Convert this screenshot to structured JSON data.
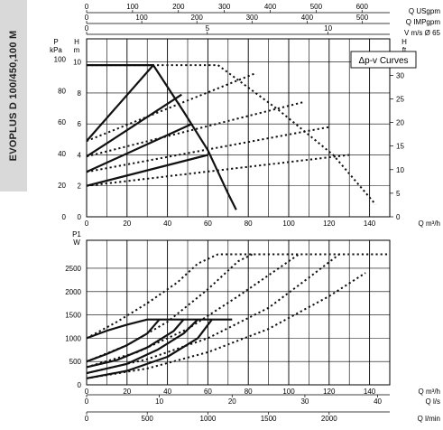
{
  "product_label": "EVOPLUS D 100/450,100 M",
  "top_scales": {
    "usgpm": {
      "label": "Q USgpm",
      "ticks": [
        "0",
        "100",
        "200",
        "300",
        "400",
        "500",
        "600"
      ]
    },
    "impgpm": {
      "label": "Q IMPgpm",
      "ticks": [
        "0",
        "100",
        "200",
        "300",
        "400",
        "500"
      ]
    },
    "velocity": {
      "label": "V m/s Ø 65",
      "ticks": [
        "0",
        "5",
        "10"
      ]
    }
  },
  "bottom_scales": {
    "ls": {
      "label": "Q l/s",
      "ticks": [
        "0",
        "10",
        "20",
        "30",
        "40"
      ]
    },
    "lmin": {
      "label": "Q l/min",
      "ticks": [
        "0",
        "500",
        "1000",
        "1500",
        "2000"
      ]
    }
  },
  "chart_data": [
    {
      "type": "line",
      "legend_box": "Δp-v Curves",
      "y_left_outer": {
        "label": "P",
        "unit": "kPa",
        "ticks": [
          "0",
          "20",
          "40",
          "60",
          "80",
          "100"
        ]
      },
      "y_left_inner": {
        "label": "H",
        "unit": "m",
        "ticks": [
          "0",
          "2",
          "4",
          "6",
          "8",
          "10"
        ]
      },
      "y_right": {
        "label": "H",
        "unit": "ft",
        "ticks": [
          "0",
          "5",
          "10",
          "15",
          "20",
          "25",
          "30"
        ]
      },
      "x": {
        "label": "Q m³/h",
        "ticks": [
          "0",
          "20",
          "40",
          "60",
          "80",
          "100",
          "120",
          "140"
        ]
      },
      "xlim": [
        0,
        150
      ],
      "ylim": [
        0,
        11.5
      ],
      "grid": true,
      "series": [
        {
          "style": "solid",
          "points": [
            [
              0,
              9.8
            ],
            [
              33,
              9.8
            ],
            [
              48,
              6.8
            ],
            [
              60,
              4.3
            ],
            [
              70,
              1.5
            ],
            [
              74,
              0.45
            ]
          ]
        },
        {
          "style": "solid",
          "points": [
            [
              0,
              4.9
            ],
            [
              33,
              9.8
            ]
          ]
        },
        {
          "style": "solid",
          "points": [
            [
              0,
              3.9
            ],
            [
              47,
              7.9
            ]
          ]
        },
        {
          "style": "solid",
          "points": [
            [
              0,
              2.9
            ],
            [
              52,
              6.0
            ]
          ]
        },
        {
          "style": "solid",
          "points": [
            [
              0,
              2.0
            ],
            [
              60,
              4.0
            ]
          ]
        },
        {
          "style": "dotted",
          "points": [
            [
              0,
              9.8
            ],
            [
              33,
              9.8
            ],
            [
              65,
              9.8
            ],
            [
              95,
              6.9
            ],
            [
              122,
              4.0
            ],
            [
              143,
              0.8
            ]
          ]
        },
        {
          "style": "dotted",
          "points": [
            [
              0,
              4.9
            ],
            [
              84,
              9.3
            ]
          ]
        },
        {
          "style": "dotted",
          "points": [
            [
              0,
              3.9
            ],
            [
              107,
              7.4
            ]
          ]
        },
        {
          "style": "dotted",
          "points": [
            [
              0,
              2.9
            ],
            [
              120,
              5.8
            ]
          ]
        },
        {
          "style": "dotted",
          "points": [
            [
              0,
              2.0
            ],
            [
              130,
              4.0
            ]
          ]
        }
      ]
    },
    {
      "type": "line",
      "y": {
        "label": "P1",
        "unit": "W",
        "ticks": [
          "0",
          "500",
          "1000",
          "1500",
          "2000",
          "2500"
        ]
      },
      "x": {
        "label": "Q m³/h",
        "ticks": [
          "0",
          "20",
          "40",
          "60",
          "80",
          "100",
          "120",
          "140"
        ]
      },
      "xlim": [
        0,
        150
      ],
      "ylim": [
        0,
        3100
      ],
      "grid": true,
      "series": [
        {
          "style": "solid",
          "points": [
            [
              0,
              1000
            ],
            [
              10,
              1160
            ],
            [
              20,
              1290
            ],
            [
              30,
              1400
            ],
            [
              72,
              1400
            ]
          ]
        },
        {
          "style": "solid",
          "points": [
            [
              0,
              500
            ],
            [
              10,
              660
            ],
            [
              20,
              850
            ],
            [
              30,
              1100
            ],
            [
              36,
              1400
            ]
          ]
        },
        {
          "style": "solid",
          "points": [
            [
              0,
              380
            ],
            [
              15,
              530
            ],
            [
              30,
              800
            ],
            [
              43,
              1150
            ],
            [
              48,
              1400
            ]
          ]
        },
        {
          "style": "solid",
          "points": [
            [
              0,
              250
            ],
            [
              20,
              450
            ],
            [
              35,
              750
            ],
            [
              48,
              1100
            ],
            [
              55,
              1400
            ]
          ]
        },
        {
          "style": "solid",
          "points": [
            [
              0,
              140
            ],
            [
              20,
              300
            ],
            [
              40,
              600
            ],
            [
              55,
              1000
            ],
            [
              62,
              1400
            ]
          ]
        },
        {
          "style": "dotted",
          "points": [
            [
              0,
              1000
            ],
            [
              15,
              1350
            ],
            [
              30,
              1750
            ],
            [
              45,
              2200
            ],
            [
              55,
              2600
            ],
            [
              65,
              2800
            ],
            [
              150,
              2800
            ]
          ]
        },
        {
          "style": "dotted",
          "points": [
            [
              0,
              500
            ],
            [
              20,
              850
            ],
            [
              40,
              1350
            ],
            [
              60,
              2050
            ],
            [
              75,
              2650
            ],
            [
              82,
              2800
            ]
          ]
        },
        {
          "style": "dotted",
          "points": [
            [
              0,
              380
            ],
            [
              25,
              700
            ],
            [
              50,
              1200
            ],
            [
              75,
              1900
            ],
            [
              95,
              2500
            ],
            [
              105,
              2800
            ]
          ]
        },
        {
          "style": "dotted",
          "points": [
            [
              0,
              250
            ],
            [
              30,
              550
            ],
            [
              60,
              1000
            ],
            [
              90,
              1650
            ],
            [
              110,
              2300
            ],
            [
              125,
              2800
            ]
          ]
        },
        {
          "style": "dotted",
          "points": [
            [
              0,
              140
            ],
            [
              30,
              350
            ],
            [
              60,
              700
            ],
            [
              90,
              1200
            ],
            [
              120,
              1900
            ],
            [
              138,
              2400
            ]
          ]
        }
      ]
    }
  ]
}
